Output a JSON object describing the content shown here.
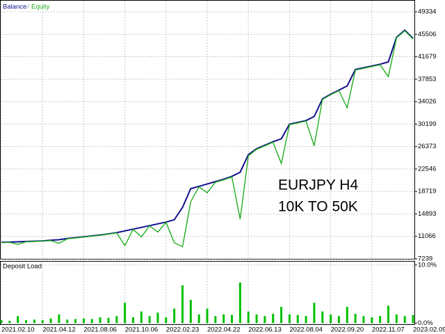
{
  "chart_data": [
    {
      "type": "line",
      "legend": {
        "separator": "/"
      },
      "annotations": [
        "EURJPY H4",
        "10K TO 50K"
      ],
      "series": [
        {
          "name": "Balance",
          "color": "#10108c",
          "values": [
            10050,
            10100,
            10150,
            10200,
            10250,
            10300,
            10400,
            10500,
            10700,
            10850,
            11000,
            11150,
            11300,
            11500,
            11700,
            12000,
            12300,
            12600,
            12900,
            13200,
            13500,
            13900,
            16000,
            19200,
            19600,
            20000,
            20400,
            20800,
            21300,
            22000,
            25000,
            26000,
            26600,
            27200,
            27700,
            30200,
            30500,
            30800,
            31500,
            34500,
            35300,
            36000,
            36700,
            39500,
            39800,
            40100,
            40400,
            40800,
            45000,
            46200,
            44800
          ]
        },
        {
          "name": "Equity",
          "color": "#1fae1f",
          "values": [
            10000,
            10050,
            9700,
            10150,
            10200,
            10250,
            10350,
            9900,
            10650,
            10800,
            10950,
            11100,
            11250,
            11450,
            11650,
            9500,
            12250,
            11000,
            12850,
            11800,
            13450,
            10000,
            9300,
            17000,
            19500,
            18500,
            20300,
            20700,
            21200,
            14000,
            24800,
            25900,
            26500,
            27100,
            23500,
            30100,
            30400,
            30700,
            26500,
            34400,
            35200,
            35900,
            33000,
            39400,
            39700,
            40000,
            40300,
            38300,
            44900,
            46100,
            44700
          ]
        }
      ],
      "ylim": [
        7239,
        51350
      ],
      "yticks": [
        7239,
        11066,
        14893,
        18719,
        22546,
        26373,
        30199,
        34026,
        37853,
        41679,
        45506,
        49334
      ],
      "grid": true
    },
    {
      "type": "bar",
      "title": "Deposit Load",
      "color": "#00c000",
      "categories": [
        "2021.02.10",
        null,
        null,
        null,
        null,
        "2021.04.12",
        null,
        null,
        null,
        null,
        "2021.08.06",
        null,
        null,
        null,
        null,
        "2021.10.06",
        null,
        null,
        null,
        null,
        "2022.02.23",
        null,
        null,
        null,
        null,
        "2022.04.22",
        null,
        null,
        null,
        null,
        "2022.06.13",
        null,
        null,
        null,
        null,
        "2022.08.04",
        null,
        null,
        null,
        null,
        "2022.09.20",
        null,
        null,
        null,
        null,
        "2022.11.07",
        null,
        null,
        null,
        null,
        "2023.02.09"
      ],
      "values": [
        0.5,
        0.4,
        1.2,
        0.5,
        0.6,
        0.5,
        0.8,
        1.5,
        0.6,
        0.7,
        0.8,
        0.7,
        1.0,
        0.9,
        1.2,
        3.5,
        1.0,
        2.0,
        1.2,
        1.8,
        1.0,
        2.5,
        6.5,
        4.0,
        1.5,
        2.5,
        1.2,
        1.5,
        1.4,
        7.0,
        2.0,
        1.5,
        1.2,
        1.6,
        2.8,
        1.5,
        1.4,
        1.2,
        3.5,
        2.0,
        1.5,
        1.2,
        2.8,
        1.6,
        1.2,
        1.0,
        1.2,
        3.0,
        1.5,
        1.2,
        1.4
      ],
      "ylim": [
        -0.2,
        10.7
      ],
      "yticks": [
        {
          "value": 0,
          "label": "0.0%"
        },
        {
          "value": 10,
          "label": "10.0%"
        }
      ],
      "grid": true
    }
  ]
}
